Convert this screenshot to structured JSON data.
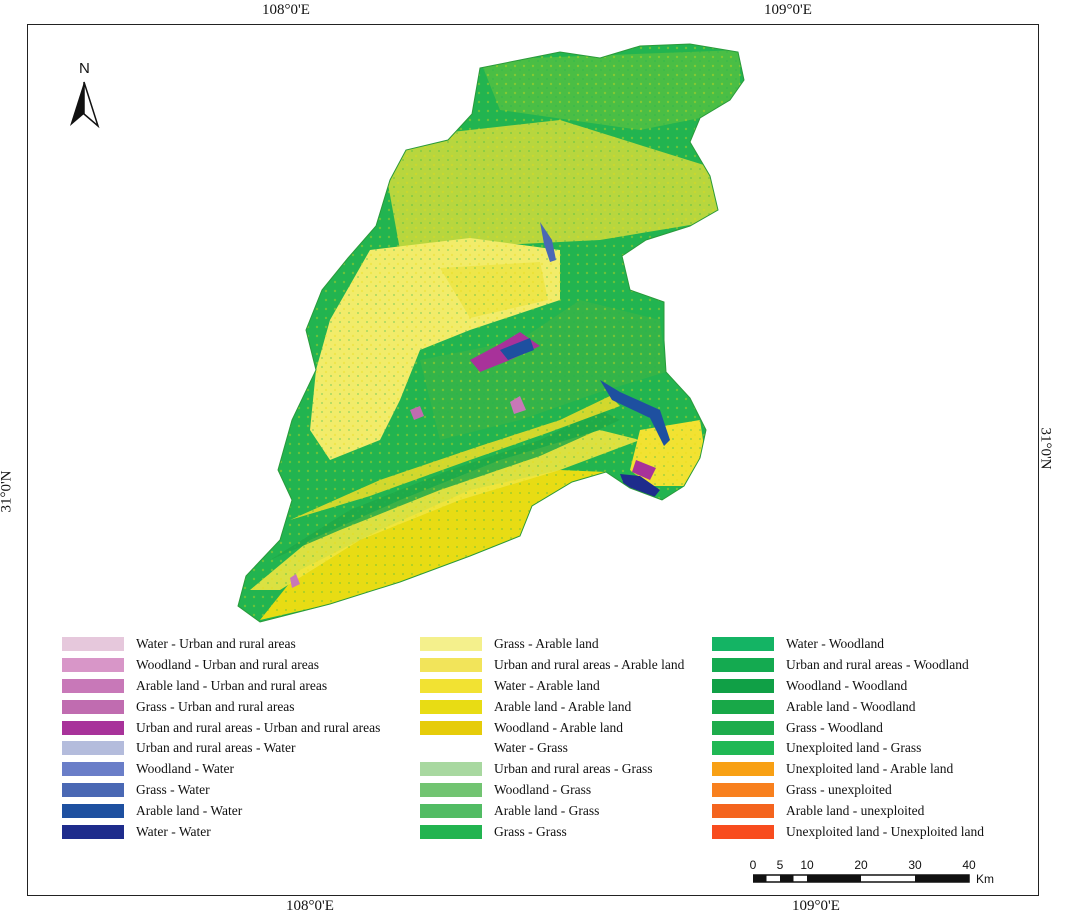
{
  "graticule": {
    "top_left_lon": "108°0'E",
    "top_right_lon": "109°0'E",
    "bottom_left_lon": "108°0'E",
    "bottom_right_lon": "109°0'E",
    "left_lat": "31°0'N",
    "right_lat": "31°0'N"
  },
  "north_arrow": {
    "label": "N",
    "icon": "north-arrow-icon"
  },
  "legend": {
    "column_1": [
      {
        "label": "Water - Urban and rural areas",
        "color": "#e6c8dc"
      },
      {
        "label": "Woodland - Urban and rural areas",
        "color": "#d896c8"
      },
      {
        "label": "Arable land - Urban and rural areas",
        "color": "#c878b8"
      },
      {
        "label": "Grass - Urban and rural areas",
        "color": "#c06cb0"
      },
      {
        "label": "Urban and rural areas - Urban and rural areas",
        "color": "#a8329a"
      },
      {
        "label": "Urban and rural areas - Water",
        "color": "#b4bcdc"
      },
      {
        "label": "Woodland - Water",
        "color": "#6a7ec8"
      },
      {
        "label": "Grass - Water",
        "color": "#4a68b4"
      },
      {
        "label": "Arable land - Water",
        "color": "#1e50a0"
      },
      {
        "label": "Water - Water",
        "color": "#1e2c8c"
      }
    ],
    "column_2": [
      {
        "label": "Grass - Arable land",
        "color": "#f4f08c"
      },
      {
        "label": "Urban and rural areas - Arable land",
        "color": "#f2e45a"
      },
      {
        "label": "Water - Arable land",
        "color": "#f2e232"
      },
      {
        "label": "Arable land - Arable land",
        "color": "#e8dc14"
      },
      {
        "label": "Woodland - Arable land",
        "color": "#e6cc0a"
      },
      {
        "label": "Water - Grass",
        "color": "#ffffff"
      },
      {
        "label": "Urban and rural areas - Grass",
        "color": "#a8d8a0"
      },
      {
        "label": "Woodland - Grass",
        "color": "#72c472"
      },
      {
        "label": "Arable land - Grass",
        "color": "#52bc64"
      },
      {
        "label": "Grass - Grass",
        "color": "#22b450"
      }
    ],
    "column_3": [
      {
        "label": "Water - Woodland",
        "color": "#14b464"
      },
      {
        "label": "Urban and rural areas - Woodland",
        "color": "#14aa50"
      },
      {
        "label": "Woodland - Woodland",
        "color": "#10a046"
      },
      {
        "label": "Arable land - Woodland",
        "color": "#18a848"
      },
      {
        "label": "Grass - Woodland",
        "color": "#1eac4c"
      },
      {
        "label": "Unexploited land - Grass",
        "color": "#20b854"
      },
      {
        "label": "Unexploited land - Arable land",
        "color": "#f8a014"
      },
      {
        "label": "Grass - unexploited",
        "color": "#f8801e"
      },
      {
        "label": "Arable land - unexploited",
        "color": "#f4641e"
      },
      {
        "label": "Unexploited land - Unexploited land",
        "color": "#f84c1e"
      }
    ]
  },
  "scale_bar": {
    "labels": [
      "0",
      "5",
      "10",
      "20",
      "30",
      "40"
    ],
    "unit": "Km"
  }
}
